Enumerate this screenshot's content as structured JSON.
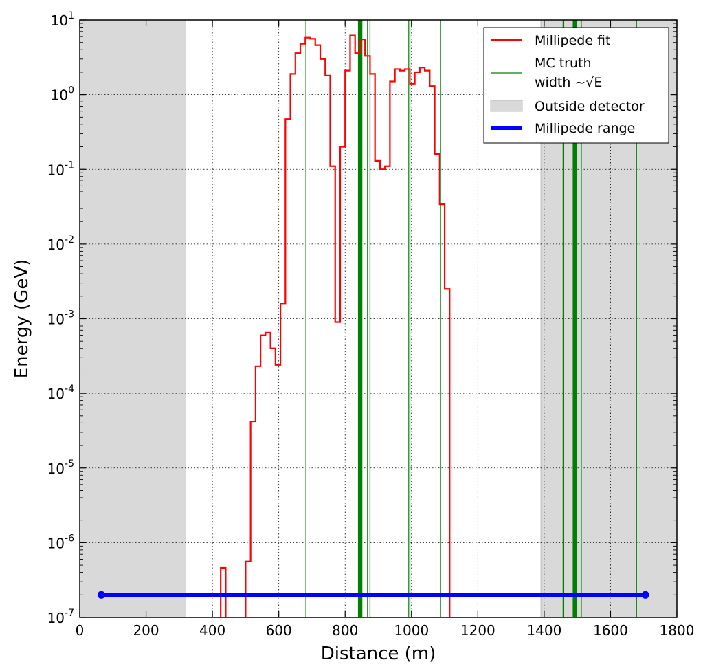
{
  "chart_data": {
    "type": "line",
    "xlabel": "Distance (m)",
    "ylabel": "Energy (GeV)",
    "xlim": [
      0,
      1800
    ],
    "ylim": [
      1e-07,
      10
    ],
    "y_scale": "log",
    "grid": true,
    "grid_style": "dotted",
    "x_ticks": [
      0,
      200,
      400,
      600,
      800,
      1000,
      1200,
      1400,
      1600,
      1800
    ],
    "x_tick_labels": [
      "0",
      "200",
      "400",
      "600",
      "800",
      "1000",
      "1200",
      "1400",
      "1600",
      "1800"
    ],
    "y_ticks": [
      {
        "value": 1e-07,
        "base": "10",
        "exp": "-7"
      },
      {
        "value": 1e-06,
        "base": "10",
        "exp": "-6"
      },
      {
        "value": 1e-05,
        "base": "10",
        "exp": "-5"
      },
      {
        "value": 0.0001,
        "base": "10",
        "exp": "-4"
      },
      {
        "value": 0.001,
        "base": "10",
        "exp": "-3"
      },
      {
        "value": 0.01,
        "base": "10",
        "exp": "-2"
      },
      {
        "value": 0.1,
        "base": "10",
        "exp": "-1"
      },
      {
        "value": 1,
        "base": "10",
        "exp": "0"
      },
      {
        "value": 10,
        "base": "10",
        "exp": "1"
      }
    ],
    "outside_detector": [
      [
        0,
        320
      ],
      [
        1390,
        1800
      ]
    ],
    "millipede_fit": {
      "name": "Millipede fit",
      "color": "#ff0000",
      "segments": [
        {
          "edges": [
            425,
            440
          ],
          "values": [
            4.6e-07
          ]
        },
        {
          "edges": [
            500,
            515,
            530,
            545,
            560,
            575,
            590,
            605,
            620,
            635,
            650,
            665,
            680,
            695,
            710,
            725,
            740,
            755,
            770,
            785,
            800,
            815,
            830,
            845,
            860,
            875,
            890,
            905,
            920,
            935,
            950,
            965,
            980,
            995,
            1010,
            1025,
            1040,
            1055,
            1070,
            1085,
            1100,
            1115
          ],
          "values": [
            5.6e-07,
            4.2e-05,
            0.00023,
            0.0006,
            0.00065,
            0.0004,
            0.00024,
            0.0016,
            0.47,
            1.9,
            3.6,
            4.8,
            5.8,
            5.6,
            4.6,
            3.0,
            1.8,
            0.11,
            0.0009,
            0.2,
            2.1,
            6.2,
            3.6,
            5.5,
            3.3,
            1.9,
            0.13,
            0.1,
            0.11,
            1.5,
            2.2,
            2.1,
            2.2,
            1.4,
            2.0,
            2.3,
            2.1,
            1.3,
            0.16,
            0.034,
            0.0025
          ]
        }
      ]
    },
    "mc_truth": {
      "name": "MC truth",
      "name_line2": "width ~√E",
      "color": "#008000",
      "lines": [
        {
          "x": 345,
          "energy": 0.1
        },
        {
          "x": 682,
          "energy": 0.4
        },
        {
          "x": 843,
          "energy": 3.0
        },
        {
          "x": 848,
          "energy": 2.5
        },
        {
          "x": 868,
          "energy": 0.5
        },
        {
          "x": 875,
          "energy": 0.3
        },
        {
          "x": 990,
          "energy": 0.5
        },
        {
          "x": 995,
          "energy": 0.4
        },
        {
          "x": 1088,
          "energy": 0.15
        },
        {
          "x": 1458,
          "energy": 0.9
        },
        {
          "x": 1490,
          "energy": 2.5
        },
        {
          "x": 1495,
          "energy": 2.5
        },
        {
          "x": 1512,
          "energy": 0.25
        },
        {
          "x": 1678,
          "energy": 0.4
        }
      ]
    },
    "millipede_range": {
      "name": "Millipede range",
      "color": "#0000ff",
      "x": [
        65,
        1705
      ],
      "y": 2e-07
    },
    "legend": {
      "placement": "top-right",
      "entries": [
        {
          "label": "Millipede fit",
          "style": "red-line"
        },
        {
          "label": "MC truth",
          "label2": "width ~√E",
          "style": "green-thin-line"
        },
        {
          "label": "Outside detector",
          "style": "gray-patch"
        },
        {
          "label": "Millipede range",
          "style": "blue-thick-line"
        }
      ]
    },
    "colors": {
      "fit": "#ff0000",
      "truth": "#008000",
      "outside": "#d9d9d9",
      "range": "#0000ff"
    }
  }
}
